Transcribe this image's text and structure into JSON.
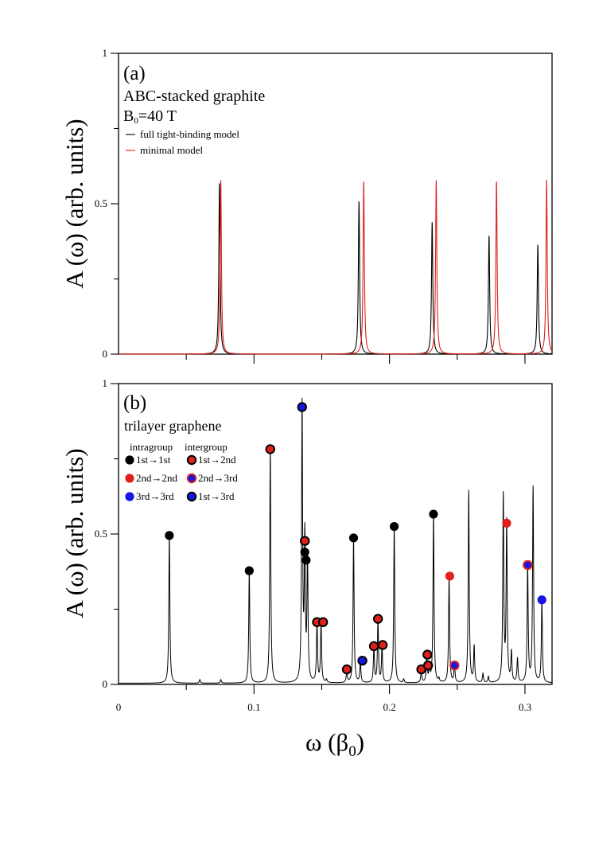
{
  "chart_data": [
    {
      "type": "line",
      "panel_label": "(a)",
      "title_line1": "ABC-stacked graphite",
      "title_line2_main": "B",
      "title_line2_sub": "0",
      "title_line2_rest": "=40 T",
      "ylabel": "A (ω) (arb. units)",
      "xlim": [
        0,
        0.32
      ],
      "ylim": [
        0,
        1
      ],
      "yticks": [
        "0",
        "0.5",
        "1"
      ],
      "ytick_values": [
        0,
        0.5,
        1
      ],
      "legend": [
        {
          "name": "full tight-binding model",
          "color": "#000000"
        },
        {
          "name": "minimal model",
          "color": "#e0201b"
        }
      ],
      "series": [
        {
          "name": "full tight-binding model",
          "color": "#000000",
          "peaks": [
            {
              "x": 0.0745,
              "y": 0.57
            },
            {
              "x": 0.1775,
              "y": 0.51
            },
            {
              "x": 0.2315,
              "y": 0.44
            },
            {
              "x": 0.2735,
              "y": 0.395
            },
            {
              "x": 0.3095,
              "y": 0.365
            }
          ]
        },
        {
          "name": "minimal model",
          "color": "#e0201b",
          "peaks": [
            {
              "x": 0.0755,
              "y": 0.58
            },
            {
              "x": 0.181,
              "y": 0.58
            },
            {
              "x": 0.2345,
              "y": 0.58
            },
            {
              "x": 0.279,
              "y": 0.58
            },
            {
              "x": 0.316,
              "y": 0.58
            }
          ]
        }
      ]
    },
    {
      "type": "line",
      "panel_label": "(b)",
      "title": "trilayer graphene",
      "group_intra": "intragroup",
      "group_inter": "intergroup",
      "ylabel": "A (ω) (arb. units)",
      "xlabel_main": "ω (β",
      "xlabel_sub": "0",
      "xlabel_end": ")",
      "xlim": [
        0,
        0.32
      ],
      "ylim": [
        0,
        1
      ],
      "xticks": [
        "0",
        "0.1",
        "0.2",
        "0.3"
      ],
      "xtick_values": [
        0,
        0.1,
        0.2,
        0.3
      ],
      "yticks": [
        "0",
        "0.5",
        "1"
      ],
      "ytick_values": [
        0,
        0.5,
        1
      ],
      "legend": [
        {
          "name": "1st→1st",
          "fill": "#000000",
          "ring": "none"
        },
        {
          "name": "1st→2nd",
          "fill": "#e0201b",
          "ring": "#000000"
        },
        {
          "name": "2nd→2nd",
          "fill": "#e0201b",
          "ring": "none"
        },
        {
          "name": "2nd→3rd",
          "fill": "#1515e6",
          "ring": "#e0201b"
        },
        {
          "name": "3rd→3rd",
          "fill": "#1515e6",
          "ring": "none"
        },
        {
          "name": "1st→3rd",
          "fill": "#1515e6",
          "ring": "#000000"
        }
      ],
      "peaks": [
        {
          "x": 0.0375,
          "y": 0.49
        },
        {
          "x": 0.06,
          "y": 0.012
        },
        {
          "x": 0.0755,
          "y": 0.012
        },
        {
          "x": 0.0965,
          "y": 0.37
        },
        {
          "x": 0.112,
          "y": 0.78
        },
        {
          "x": 0.1355,
          "y": 0.92
        },
        {
          "x": 0.1375,
          "y": 0.47
        },
        {
          "x": 0.1395,
          "y": 0.41
        },
        {
          "x": 0.1465,
          "y": 0.2
        },
        {
          "x": 0.1495,
          "y": 0.2
        },
        {
          "x": 0.1535,
          "y": 0.01
        },
        {
          "x": 0.1685,
          "y": 0.04
        },
        {
          "x": 0.1735,
          "y": 0.48
        },
        {
          "x": 0.1785,
          "y": 0.07
        },
        {
          "x": 0.1885,
          "y": 0.12
        },
        {
          "x": 0.1915,
          "y": 0.21
        },
        {
          "x": 0.1945,
          "y": 0.12
        },
        {
          "x": 0.2035,
          "y": 0.52
        },
        {
          "x": 0.2105,
          "y": 0.012
        },
        {
          "x": 0.2235,
          "y": 0.045
        },
        {
          "x": 0.2275,
          "y": 0.09
        },
        {
          "x": 0.2295,
          "y": 0.055
        },
        {
          "x": 0.2325,
          "y": 0.56
        },
        {
          "x": 0.2365,
          "y": 0.012
        },
        {
          "x": 0.244,
          "y": 0.35
        },
        {
          "x": 0.248,
          "y": 0.06
        },
        {
          "x": 0.2585,
          "y": 0.64
        },
        {
          "x": 0.2625,
          "y": 0.12
        },
        {
          "x": 0.269,
          "y": 0.03
        },
        {
          "x": 0.273,
          "y": 0.02
        },
        {
          "x": 0.284,
          "y": 0.62
        },
        {
          "x": 0.2865,
          "y": 0.53
        },
        {
          "x": 0.29,
          "y": 0.1
        },
        {
          "x": 0.2945,
          "y": 0.08
        },
        {
          "x": 0.302,
          "y": 0.39
        },
        {
          "x": 0.306,
          "y": 0.65
        },
        {
          "x": 0.3125,
          "y": 0.27
        }
      ],
      "markers": [
        {
          "x": 0.0375,
          "y": 0.495,
          "type": "1st→1st"
        },
        {
          "x": 0.0965,
          "y": 0.378,
          "type": "1st→1st"
        },
        {
          "x": 0.112,
          "y": 0.782,
          "type": "1st→2nd"
        },
        {
          "x": 0.1355,
          "y": 0.922,
          "type": "1st→3rd"
        },
        {
          "x": 0.1375,
          "y": 0.477,
          "type": "1st→2nd"
        },
        {
          "x": 0.1375,
          "y": 0.44,
          "type": "1st→1st"
        },
        {
          "x": 0.1385,
          "y": 0.413,
          "type": "1st→1st"
        },
        {
          "x": 0.1465,
          "y": 0.207,
          "type": "1st→2nd"
        },
        {
          "x": 0.151,
          "y": 0.207,
          "type": "1st→2nd"
        },
        {
          "x": 0.1685,
          "y": 0.05,
          "type": "1st→2nd"
        },
        {
          "x": 0.1735,
          "y": 0.487,
          "type": "1st→1st"
        },
        {
          "x": 0.18,
          "y": 0.079,
          "type": "1st→3rd"
        },
        {
          "x": 0.1885,
          "y": 0.127,
          "type": "1st→2nd"
        },
        {
          "x": 0.1915,
          "y": 0.218,
          "type": "1st→2nd"
        },
        {
          "x": 0.195,
          "y": 0.131,
          "type": "1st→2nd"
        },
        {
          "x": 0.2035,
          "y": 0.525,
          "type": "1st→1st"
        },
        {
          "x": 0.2235,
          "y": 0.05,
          "type": "1st→2nd"
        },
        {
          "x": 0.228,
          "y": 0.099,
          "type": "1st→2nd"
        },
        {
          "x": 0.2285,
          "y": 0.063,
          "type": "1st→2nd"
        },
        {
          "x": 0.2325,
          "y": 0.566,
          "type": "1st→1st"
        },
        {
          "x": 0.2445,
          "y": 0.36,
          "type": "2nd→2nd"
        },
        {
          "x": 0.248,
          "y": 0.063,
          "type": "2nd→3rd"
        },
        {
          "x": 0.2865,
          "y": 0.536,
          "type": "2nd→2nd"
        },
        {
          "x": 0.302,
          "y": 0.397,
          "type": "2nd→3rd"
        },
        {
          "x": 0.3125,
          "y": 0.281,
          "type": "3rd→3rd"
        }
      ]
    }
  ]
}
